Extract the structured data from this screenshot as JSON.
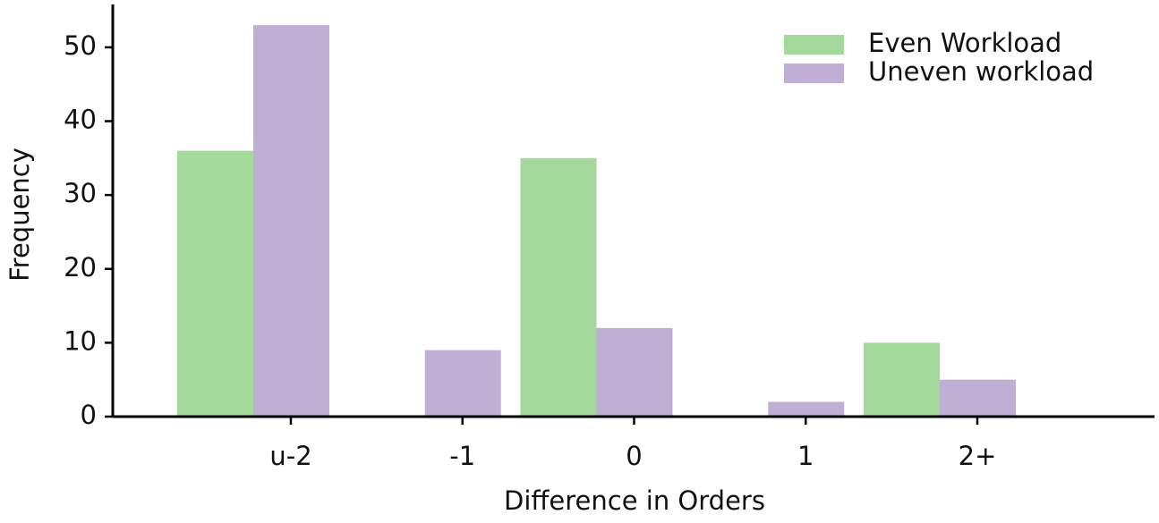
{
  "chart_data": {
    "type": "bar",
    "x_label": "Difference in Orders",
    "y_label": "Frequency",
    "categories": [
      "u-2",
      "-1",
      "0",
      "1",
      "2+"
    ],
    "series": [
      {
        "name": "Even Workload",
        "color": "#a3d99b",
        "values": [
          36,
          0,
          35,
          0,
          10
        ]
      },
      {
        "name": "Uneven workload",
        "color": "#bfafd4",
        "values": [
          53,
          9,
          12,
          2,
          5
        ]
      }
    ],
    "ylim": [
      0,
      55.8
    ],
    "yticks": [
      0,
      10,
      20,
      30,
      40,
      50
    ],
    "legend": "upper right"
  }
}
